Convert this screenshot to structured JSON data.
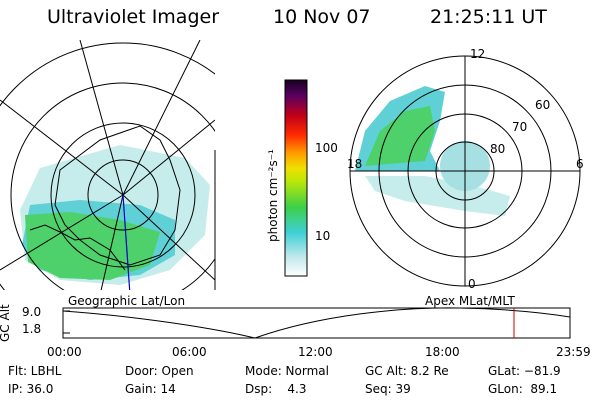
{
  "header": {
    "instrument": "Ultraviolet Imager",
    "date": "10 Nov 07",
    "time": "21:25:11 UT"
  },
  "left_panel": {
    "caption": "Geographic Lat/Lon"
  },
  "right_panel": {
    "caption": "Apex  MLat/MLT",
    "mlt_labels": [
      "12",
      "18",
      "6",
      "0"
    ],
    "lat_labels": [
      "60",
      "70",
      "80"
    ]
  },
  "colorbar": {
    "unit_label": "photon cm⁻²s⁻¹",
    "ticks": [
      "100",
      "10"
    ]
  },
  "altitude_plot": {
    "axis_title": "GC Alt",
    "y_ticks": [
      "9.0",
      "1.8"
    ],
    "x_ticks": [
      "00:00",
      "06:00",
      "12:00",
      "18:00",
      "23:59"
    ],
    "marker_color": "#cc0000"
  },
  "status": {
    "filter": "Flt: LBHL",
    "ip": "IP: 36.0",
    "door": "Door: Open",
    "gain": "Gain: 14",
    "mode": "Mode: Normal",
    "dsp": "Dsp:    4.3",
    "gc_alt": "GC Alt: 8.2 Re",
    "seq": "Seq: 39",
    "glat": "GLat: −81.9",
    "glon": "GLon:  89.1"
  }
}
